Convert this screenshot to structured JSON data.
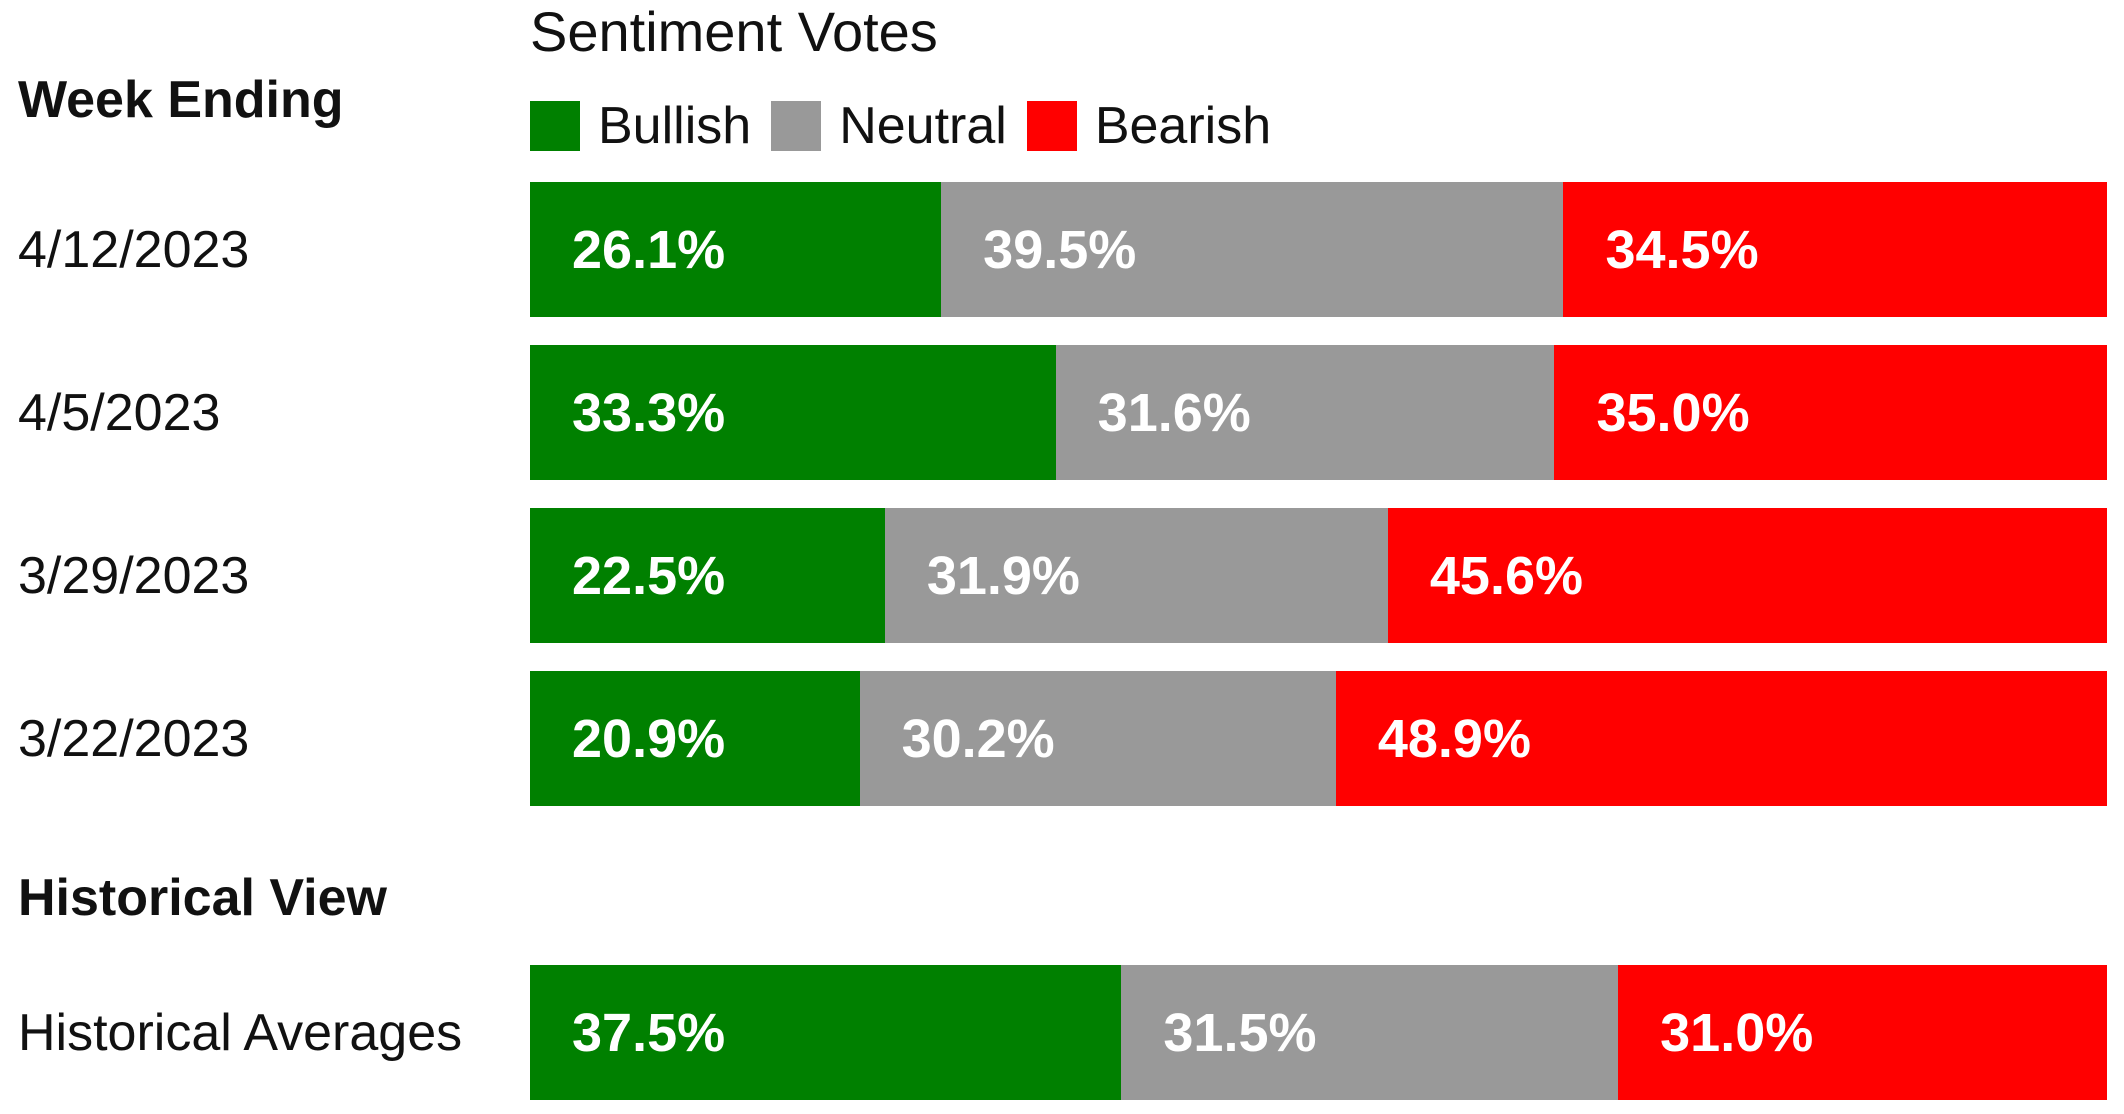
{
  "chart_data": {
    "type": "bar",
    "orientation": "horizontal-stacked-100",
    "title": "Sentiment Votes",
    "legend_placement": "top",
    "series": [
      {
        "name": "Bullish",
        "color": "#008000"
      },
      {
        "name": "Neutral",
        "color": "#999999"
      },
      {
        "name": "Bearish",
        "color": "#ff0000"
      }
    ],
    "sections": [
      {
        "header": "Week Ending",
        "rows": [
          {
            "label": "4/12/2023",
            "values": [
              26.1,
              39.5,
              34.5
            ],
            "value_labels": [
              "26.1%",
              "39.5%",
              "34.5%"
            ]
          },
          {
            "label": "4/5/2023",
            "values": [
              33.3,
              31.6,
              35.0
            ],
            "value_labels": [
              "33.3%",
              "31.6%",
              "35.0%"
            ]
          },
          {
            "label": "3/29/2023",
            "values": [
              22.5,
              31.9,
              45.6
            ],
            "value_labels": [
              "22.5%",
              "31.9%",
              "45.6%"
            ]
          },
          {
            "label": "3/22/2023",
            "values": [
              20.9,
              30.2,
              48.9
            ],
            "value_labels": [
              "20.9%",
              "30.2%",
              "48.9%"
            ]
          }
        ]
      },
      {
        "header": "Historical View",
        "rows": [
          {
            "label": "Historical Averages",
            "values": [
              37.5,
              31.5,
              31.0
            ],
            "value_labels": [
              "37.5%",
              "31.5%",
              "31.0%"
            ]
          }
        ]
      }
    ]
  }
}
